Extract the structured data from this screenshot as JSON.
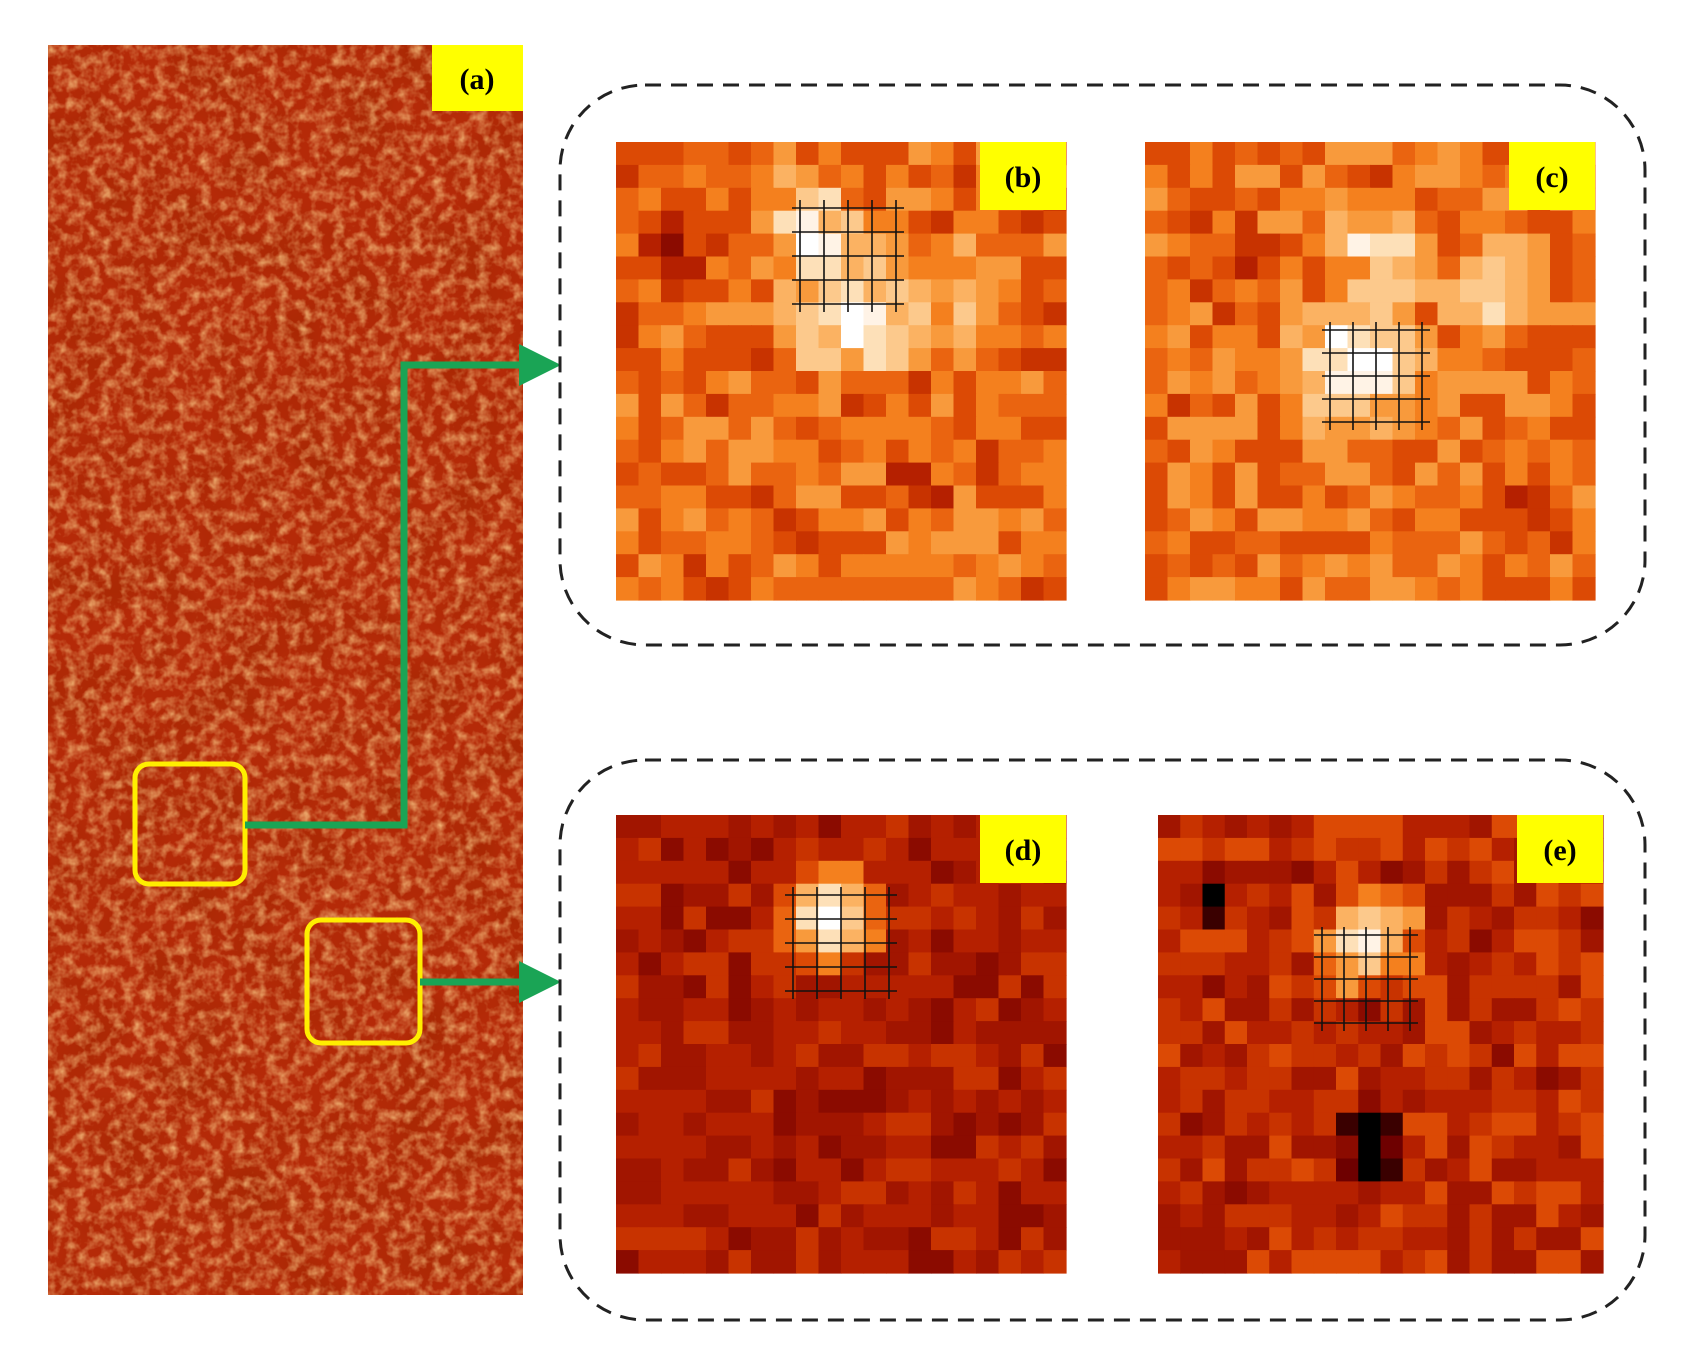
{
  "panels": {
    "a": {
      "label": "(a)"
    },
    "b": {
      "label": "(b)"
    },
    "c": {
      "label": "(c)"
    },
    "d": {
      "label": "(d)"
    },
    "e": {
      "label": "(e)"
    }
  },
  "colors": {
    "label_bg": "#ffff00",
    "highlight_box": "#ffee00",
    "arrow": "#1aa455",
    "dashed_border": "#222222",
    "grid": "#111111",
    "palette": [
      "#000000",
      "#3a0000",
      "#6e0000",
      "#8b0b00",
      "#a11500",
      "#b52000",
      "#c83300",
      "#dc4a05",
      "#ea6410",
      "#f4801e",
      "#f89a3c",
      "#fbb262",
      "#fcc98c",
      "#fde0b8",
      "#fff3e6",
      "#ffffff"
    ]
  },
  "icons": {
    "arrow_top": "right-arrow-icon",
    "arrow_bottom": "right-arrow-icon"
  }
}
